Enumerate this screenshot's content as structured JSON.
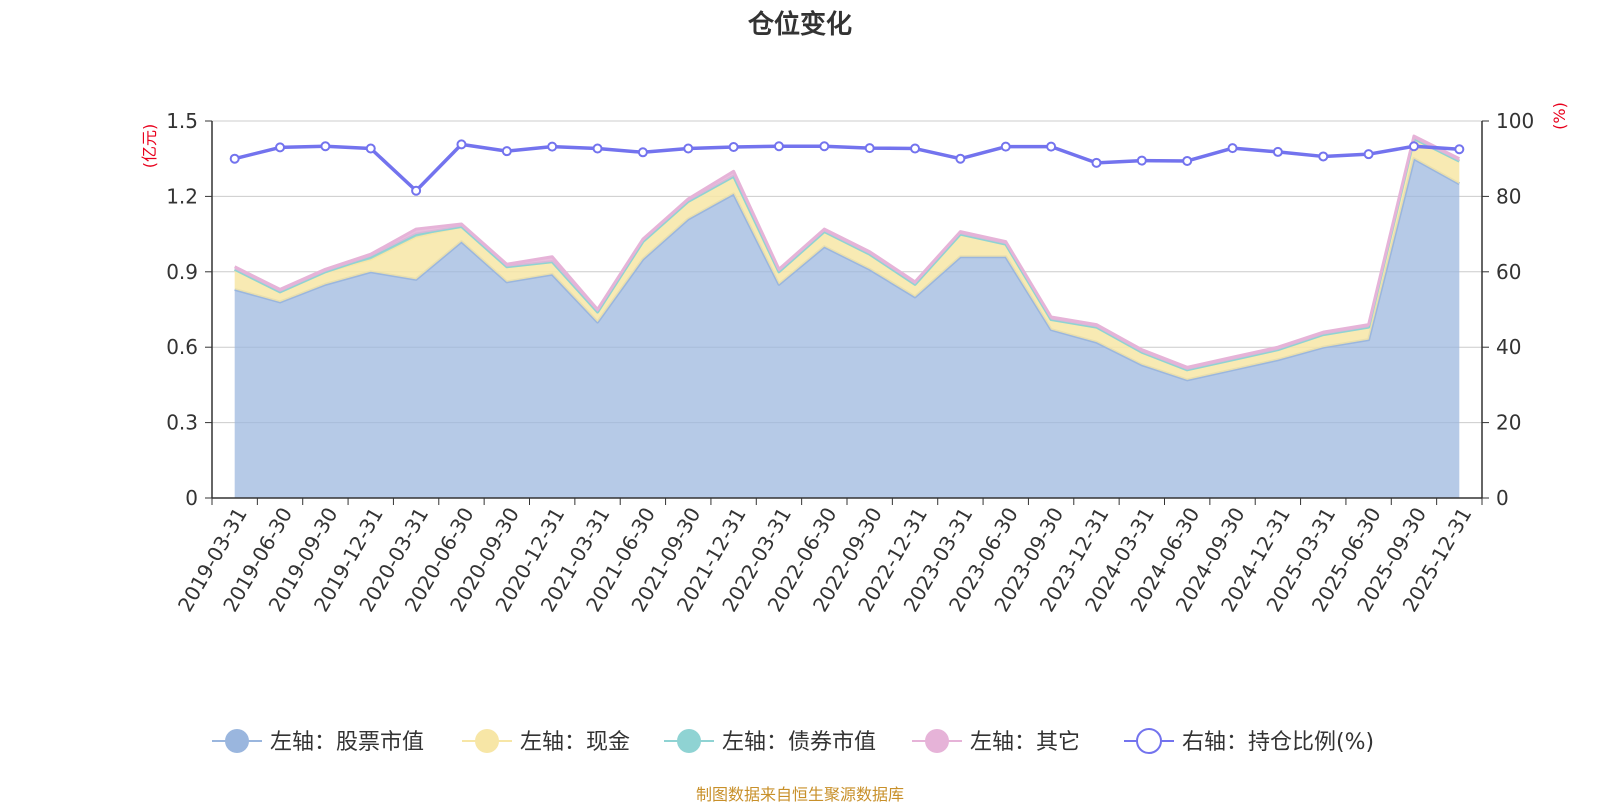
{
  "chart_data": {
    "type": "area",
    "title": "仓位变化",
    "source": "制图数据来自恒生聚源数据库",
    "left_axis": {
      "unit": "(亿元)",
      "ylim": [
        0,
        1.5
      ],
      "ticks": [
        "0",
        "0.3",
        "0.6",
        "0.9",
        "1.2",
        "1.5"
      ]
    },
    "right_axis": {
      "unit": "(%)",
      "ylim": [
        0,
        100
      ],
      "ticks": [
        "0",
        "20",
        "40",
        "60",
        "80",
        "100"
      ]
    },
    "grid": true,
    "legend_position": "bottom",
    "categories": [
      "2019-03-31",
      "2019-06-30",
      "2019-09-30",
      "2019-12-31",
      "2020-03-31",
      "2020-06-30",
      "2020-09-30",
      "2020-12-31",
      "2021-03-31",
      "2021-06-30",
      "2021-09-30",
      "2021-12-31",
      "2022-03-31",
      "2022-06-30",
      "2022-09-30",
      "2022-12-31",
      "2023-03-31",
      "2023-06-30",
      "2023-09-30",
      "2023-12-31",
      "2024-03-31",
      "2024-06-30",
      "2024-09-30",
      "2024-12-31",
      "2025-03-31",
      "2025-06-30",
      "2025-09-30",
      "2025-12-31"
    ],
    "series": [
      {
        "name": "左轴：股票市值",
        "axis": "left",
        "color": "#9ab6de",
        "values": [
          0.83,
          0.78,
          0.85,
          0.9,
          0.87,
          1.02,
          0.86,
          0.89,
          0.7,
          0.95,
          1.11,
          1.21,
          0.85,
          1.0,
          0.91,
          0.8,
          0.96,
          0.96,
          0.67,
          0.62,
          0.53,
          0.47,
          0.51,
          0.55,
          0.6,
          0.63,
          1.35,
          1.25
        ]
      },
      {
        "name": "左轴：现金",
        "axis": "left",
        "color": "#f7e6a6",
        "values": [
          0.08,
          0.04,
          0.05,
          0.05,
          0.17,
          0.06,
          0.06,
          0.05,
          0.04,
          0.07,
          0.07,
          0.07,
          0.05,
          0.06,
          0.06,
          0.05,
          0.09,
          0.05,
          0.04,
          0.06,
          0.05,
          0.04,
          0.04,
          0.04,
          0.05,
          0.05,
          0.08,
          0.09
        ]
      },
      {
        "name": "左轴：债券市值",
        "axis": "left",
        "color": "#8fd3d3",
        "values": [
          0,
          0,
          0,
          0.01,
          0.01,
          0,
          0,
          0,
          0,
          0,
          0,
          0,
          0,
          0,
          0,
          0,
          0,
          0,
          0,
          0,
          0,
          0,
          0,
          0,
          0,
          0,
          0,
          0
        ]
      },
      {
        "name": "左轴：其它",
        "axis": "left",
        "color": "#e6b3d8",
        "values": [
          0.01,
          0.01,
          0.01,
          0.01,
          0.02,
          0.01,
          0.01,
          0.02,
          0.01,
          0.01,
          0.01,
          0.02,
          0.01,
          0.01,
          0.01,
          0.01,
          0.01,
          0.01,
          0.01,
          0.01,
          0.01,
          0.01,
          0.01,
          0.01,
          0.01,
          0.01,
          0.01,
          0.01
        ]
      },
      {
        "name": "右轴：持仓比例(%)",
        "axis": "right",
        "color": "#7373ee",
        "values": [
          90,
          93,
          93.3,
          92.7,
          81.5,
          93.8,
          92,
          93.2,
          92.7,
          91.7,
          92.7,
          93.1,
          93.3,
          93.3,
          92.8,
          92.7,
          90,
          93.2,
          93.2,
          88.9,
          89.5,
          89.4,
          92.8,
          91.8,
          90.6,
          91.2,
          93.3,
          92.5
        ]
      }
    ]
  }
}
